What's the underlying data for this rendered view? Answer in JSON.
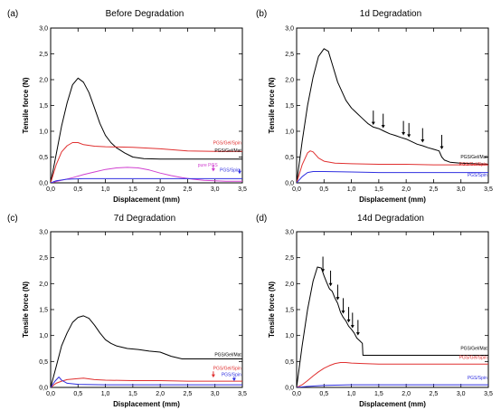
{
  "chart_data": [
    {
      "type": "line",
      "panel_letter": "(a)",
      "title": "Before Degradation",
      "xlabel": "Displacement (mm)",
      "ylabel": "Tensile force (N)",
      "xlim": [
        0,
        3.5
      ],
      "ylim": [
        0,
        3.0
      ],
      "xticks": [
        "0,0",
        "0,5",
        "1,0",
        "1,5",
        "2,0",
        "2,5",
        "3,0",
        "3,5"
      ],
      "yticks": [
        "0,0",
        "0,5",
        "1,0",
        "1,5",
        "2,0",
        "2,5",
        "3,0"
      ],
      "series": [
        {
          "name": "PGS/Gel/Mat",
          "color": "#000000",
          "x": [
            0,
            0.1,
            0.2,
            0.3,
            0.4,
            0.5,
            0.6,
            0.7,
            0.8,
            0.9,
            1.0,
            1.1,
            1.2,
            1.35,
            1.5,
            1.7,
            2.0,
            2.5,
            3.0,
            3.5
          ],
          "y": [
            0,
            0.55,
            1.1,
            1.55,
            1.9,
            2.03,
            1.95,
            1.75,
            1.45,
            1.15,
            0.92,
            0.78,
            0.68,
            0.58,
            0.5,
            0.47,
            0.46,
            0.46,
            0.46,
            0.46
          ]
        },
        {
          "name": "PGS/Gel/Spin",
          "color": "#e03030",
          "x": [
            0,
            0.1,
            0.2,
            0.3,
            0.4,
            0.5,
            0.6,
            0.8,
            1.0,
            1.5,
            2.0,
            2.5,
            3.0,
            3.5
          ],
          "y": [
            0,
            0.35,
            0.6,
            0.72,
            0.78,
            0.78,
            0.74,
            0.71,
            0.7,
            0.69,
            0.66,
            0.62,
            0.61,
            0.61
          ]
        },
        {
          "name": "pure PGS",
          "color": "#d040d0",
          "x": [
            0,
            0.2,
            0.4,
            0.6,
            0.8,
            1.0,
            1.2,
            1.4,
            1.6,
            1.8,
            2.0,
            2.2,
            2.4,
            2.6,
            2.8,
            3.0,
            3.2,
            3.5
          ],
          "y": [
            0,
            0.05,
            0.1,
            0.16,
            0.21,
            0.26,
            0.29,
            0.3,
            0.29,
            0.25,
            0.19,
            0.14,
            0.1,
            0.07,
            0.05,
            0.04,
            0.03,
            0.03
          ]
        },
        {
          "name": "PGS/Spin",
          "color": "#3030e0",
          "x": [
            0,
            0.1,
            0.3,
            0.6,
            1.0,
            1.5,
            2.0,
            2.5,
            3.0,
            3.5
          ],
          "y": [
            0,
            0.04,
            0.07,
            0.08,
            0.08,
            0.08,
            0.08,
            0.08,
            0.08,
            0.08
          ]
        }
      ],
      "labels": [
        {
          "text": "PGS/Gel/Spin",
          "color": "#e03030",
          "x": 3.48,
          "y": 0.75
        },
        {
          "text": "PGS/Gel/Mat",
          "color": "#000000",
          "x": 3.48,
          "y": 0.6
        },
        {
          "text": "pure PGS",
          "color": "#d040d0",
          "x": 3.05,
          "y": 0.32
        },
        {
          "text": "PGS/Spin",
          "color": "#3030e0",
          "x": 3.45,
          "y": 0.22
        }
      ],
      "arrows": [
        {
          "x": 2.97,
          "y": 0.22,
          "color": "#d040d0",
          "len": 0.14
        },
        {
          "x": 3.45,
          "y": 0.17,
          "color": "#3030e0",
          "len": 0.1
        }
      ]
    },
    {
      "type": "line",
      "panel_letter": "(b)",
      "title": "1d Degradation",
      "xlabel": "Displacement (mm)",
      "ylabel": "Tensile force (N)",
      "xlim": [
        0,
        3.5
      ],
      "ylim": [
        0,
        3.0
      ],
      "xticks": [
        "0,0",
        "0,5",
        "1,0",
        "1,5",
        "2,0",
        "2,5",
        "3,0",
        "3,5"
      ],
      "yticks": [
        "0,0",
        "0,5",
        "1,0",
        "1,5",
        "2,0",
        "2,5",
        "3,0"
      ],
      "series": [
        {
          "name": "PGS/Gel/Mat",
          "color": "#000000",
          "x": [
            0,
            0.1,
            0.2,
            0.3,
            0.4,
            0.5,
            0.58,
            0.65,
            0.75,
            0.9,
            1.0,
            1.1,
            1.2,
            1.3,
            1.4,
            1.5,
            1.6,
            1.7,
            1.8,
            1.9,
            2.0,
            2.1,
            2.2,
            2.3,
            2.4,
            2.5,
            2.6,
            2.65,
            2.7,
            2.8,
            3.0,
            3.5
          ],
          "y": [
            0,
            0.8,
            1.5,
            2.05,
            2.45,
            2.6,
            2.55,
            2.3,
            1.95,
            1.6,
            1.45,
            1.35,
            1.25,
            1.15,
            1.08,
            1.05,
            1.0,
            0.95,
            0.92,
            0.88,
            0.85,
            0.8,
            0.75,
            0.72,
            0.68,
            0.65,
            0.62,
            0.5,
            0.44,
            0.4,
            0.38,
            0.36
          ]
        },
        {
          "name": "PGS/Gel/Spin",
          "color": "#e03030",
          "x": [
            0,
            0.1,
            0.2,
            0.25,
            0.3,
            0.4,
            0.5,
            0.7,
            1.0,
            1.5,
            2.0,
            2.5,
            3.0,
            3.5
          ],
          "y": [
            0,
            0.35,
            0.58,
            0.62,
            0.6,
            0.48,
            0.42,
            0.38,
            0.37,
            0.36,
            0.36,
            0.35,
            0.35,
            0.35
          ]
        },
        {
          "name": "PGS/Spin",
          "color": "#3030e0",
          "x": [
            0,
            0.1,
            0.2,
            0.3,
            0.5,
            1.0,
            1.5,
            2.0,
            2.5,
            3.0,
            3.5
          ],
          "y": [
            0,
            0.12,
            0.2,
            0.22,
            0.22,
            0.21,
            0.2,
            0.2,
            0.2,
            0.2,
            0.2
          ]
        }
      ],
      "labels": [
        {
          "text": "PGS/Gel/Mat",
          "color": "#000000",
          "x": 3.48,
          "y": 0.47
        },
        {
          "text": "PGS/Gel/Spin",
          "color": "#e03030",
          "x": 3.48,
          "y": 0.33
        },
        {
          "text": "PGS/Spin",
          "color": "#3030e0",
          "x": 3.48,
          "y": 0.12
        }
      ],
      "arrows": [
        {
          "x": 1.4,
          "y": 1.12,
          "color": "#000000",
          "len": 0.28
        },
        {
          "x": 1.58,
          "y": 1.06,
          "color": "#000000",
          "len": 0.28
        },
        {
          "x": 1.95,
          "y": 0.92,
          "color": "#000000",
          "len": 0.28
        },
        {
          "x": 2.05,
          "y": 0.88,
          "color": "#000000",
          "len": 0.28
        },
        {
          "x": 2.3,
          "y": 0.78,
          "color": "#000000",
          "len": 0.28
        },
        {
          "x": 2.65,
          "y": 0.65,
          "color": "#000000",
          "len": 0.28
        }
      ]
    },
    {
      "type": "line",
      "panel_letter": "(c)",
      "title": "7d Degradation",
      "xlabel": "Displacement (mm)",
      "ylabel": "Tensile force (N)",
      "xlim": [
        0,
        3.5
      ],
      "ylim": [
        0,
        3.0
      ],
      "xticks": [
        "0,0",
        "0,5",
        "1,0",
        "1,5",
        "2,0",
        "2,5",
        "3,0",
        "3,5"
      ],
      "yticks": [
        "0,0",
        "0,5",
        "1,0",
        "1,5",
        "2,0",
        "2,5",
        "3,0"
      ],
      "series": [
        {
          "name": "PGS/Gel/Mat",
          "color": "#000000",
          "x": [
            0,
            0.1,
            0.2,
            0.3,
            0.4,
            0.5,
            0.6,
            0.7,
            0.8,
            0.9,
            1.0,
            1.1,
            1.2,
            1.4,
            1.6,
            1.8,
            2.0,
            2.2,
            2.4,
            2.6,
            3.0,
            3.5
          ],
          "y": [
            0,
            0.4,
            0.8,
            1.05,
            1.25,
            1.35,
            1.38,
            1.33,
            1.2,
            1.05,
            0.92,
            0.85,
            0.8,
            0.75,
            0.73,
            0.7,
            0.68,
            0.6,
            0.55,
            0.55,
            0.55,
            0.55
          ]
        },
        {
          "name": "PGS/Gel/Spin",
          "color": "#e03030",
          "x": [
            0,
            0.1,
            0.2,
            0.3,
            0.5,
            0.6,
            0.8,
            1.0,
            1.5,
            2.0,
            2.5,
            3.0,
            3.5
          ],
          "y": [
            0,
            0.08,
            0.12,
            0.15,
            0.17,
            0.18,
            0.15,
            0.14,
            0.13,
            0.13,
            0.12,
            0.12,
            0.12
          ]
        },
        {
          "name": "PGS/Spin",
          "color": "#3030e0",
          "x": [
            0,
            0.08,
            0.15,
            0.2,
            0.3,
            0.5,
            1.0,
            1.5,
            2.0,
            2.5,
            3.0,
            3.5
          ],
          "y": [
            0,
            0.12,
            0.2,
            0.14,
            0.08,
            0.06,
            0.05,
            0.05,
            0.05,
            0.05,
            0.05,
            0.05
          ]
        }
      ],
      "labels": [
        {
          "text": "PGS/Gel/Mat",
          "color": "#000000",
          "x": 3.48,
          "y": 0.6
        },
        {
          "text": "PGS/Gel/Spin",
          "color": "#e03030",
          "x": 3.48,
          "y": 0.34
        },
        {
          "text": "PGS/Spin",
          "color": "#3030e0",
          "x": 3.48,
          "y": 0.22
        }
      ],
      "arrows": [
        {
          "x": 2.97,
          "y": 0.19,
          "color": "#e03030",
          "len": 0.12
        },
        {
          "x": 3.35,
          "y": 0.12,
          "color": "#3030e0",
          "len": 0.08
        }
      ]
    },
    {
      "type": "line",
      "panel_letter": "(d)",
      "title": "14d Degradation",
      "xlabel": "Displacement (mm)",
      "ylabel": "Tensile force (N)",
      "xlim": [
        0,
        3.5
      ],
      "ylim": [
        0,
        3.0
      ],
      "xticks": [
        "0,0",
        "0,5",
        "1,0",
        "1,5",
        "2,0",
        "2,5",
        "3,0",
        "3,5"
      ],
      "yticks": [
        "0,0",
        "0,5",
        "1,0",
        "1,5",
        "2,0",
        "2,5",
        "3,0"
      ],
      "series": [
        {
          "name": "PGS/Gel/Mat",
          "color": "#000000",
          "x": [
            0,
            0.1,
            0.2,
            0.3,
            0.38,
            0.45,
            0.5,
            0.55,
            0.6,
            0.65,
            0.7,
            0.75,
            0.8,
            0.85,
            0.9,
            0.95,
            1.0,
            1.05,
            1.1,
            1.15,
            1.2,
            1.21,
            1.5,
            2.0,
            2.5,
            3.0,
            3.5
          ],
          "y": [
            0,
            0.8,
            1.5,
            2.05,
            2.32,
            2.3,
            2.15,
            2.02,
            1.9,
            1.85,
            1.72,
            1.62,
            1.45,
            1.35,
            1.28,
            1.18,
            1.12,
            1.05,
            0.95,
            0.9,
            0.85,
            0.62,
            0.62,
            0.62,
            0.62,
            0.62,
            0.62
          ]
        },
        {
          "name": "PGS/Gel/Spin",
          "color": "#e03030",
          "x": [
            0,
            0.1,
            0.2,
            0.3,
            0.4,
            0.5,
            0.6,
            0.7,
            0.8,
            0.9,
            1.0,
            1.2,
            1.5,
            2.0,
            2.5,
            3.0,
            3.5
          ],
          "y": [
            0,
            0.05,
            0.13,
            0.22,
            0.3,
            0.37,
            0.42,
            0.46,
            0.48,
            0.48,
            0.47,
            0.46,
            0.45,
            0.45,
            0.45,
            0.45,
            0.45
          ]
        },
        {
          "name": "PGS/Spin",
          "color": "#3030e0",
          "x": [
            0,
            0.2,
            0.5,
            1.0,
            1.5,
            2.0,
            2.5,
            3.0,
            3.5
          ],
          "y": [
            0,
            0.02,
            0.04,
            0.05,
            0.05,
            0.05,
            0.05,
            0.05,
            0.05
          ]
        }
      ],
      "labels": [
        {
          "text": "PGS/Gel/Mat",
          "color": "#000000",
          "x": 3.48,
          "y": 0.72
        },
        {
          "text": "PGS/Gel/Spin",
          "color": "#e03030",
          "x": 3.48,
          "y": 0.55
        },
        {
          "text": "PGS/Spin",
          "color": "#3030e0",
          "x": 3.48,
          "y": 0.16
        }
      ],
      "arrows": [
        {
          "x": 0.48,
          "y": 2.22,
          "color": "#000000",
          "len": 0.3
        },
        {
          "x": 0.62,
          "y": 1.95,
          "color": "#000000",
          "len": 0.3
        },
        {
          "x": 0.75,
          "y": 1.68,
          "color": "#000000",
          "len": 0.3
        },
        {
          "x": 0.85,
          "y": 1.42,
          "color": "#000000",
          "len": 0.3
        },
        {
          "x": 0.95,
          "y": 1.25,
          "color": "#000000",
          "len": 0.3
        },
        {
          "x": 1.02,
          "y": 1.14,
          "color": "#000000",
          "len": 0.3
        },
        {
          "x": 1.12,
          "y": 1.0,
          "color": "#000000",
          "len": 0.3
        }
      ]
    }
  ]
}
